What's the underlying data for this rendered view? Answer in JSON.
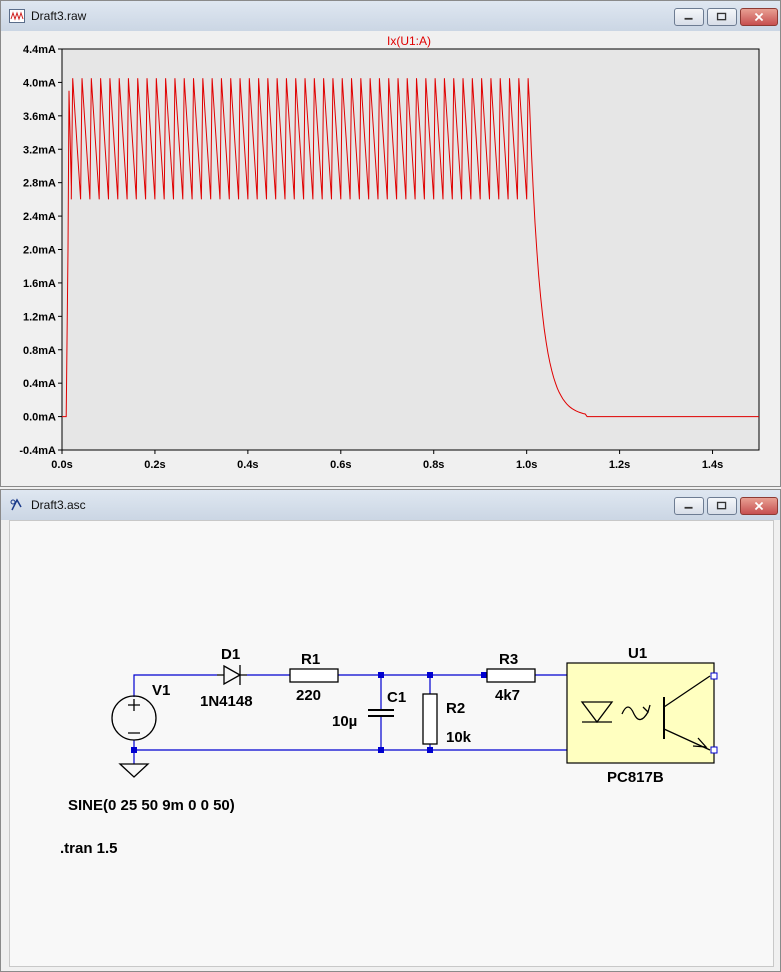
{
  "top_window": {
    "title": "Draft3.raw",
    "icon": "waveform-viewer-icon"
  },
  "bottom_window": {
    "title": "Draft3.asc",
    "icon": "schematic-editor-icon"
  },
  "chart_data": {
    "type": "line",
    "title": "",
    "trace_label": "Ix(U1:A)",
    "trace_color": "#e00000",
    "xlabel": "",
    "ylabel": "",
    "xlim": [
      0.0,
      1.5
    ],
    "ylim": [
      -0.4,
      4.4
    ],
    "x_ticks": [
      "0.0s",
      "0.2s",
      "0.4s",
      "0.6s",
      "0.8s",
      "1.0s",
      "1.2s",
      "1.4s"
    ],
    "y_ticks": [
      "-0.4mA",
      "0.0mA",
      "0.4mA",
      "0.8mA",
      "1.2mA",
      "1.6mA",
      "2.0mA",
      "2.4mA",
      "2.8mA",
      "3.2mA",
      "3.6mA",
      "4.0mA",
      "4.4mA"
    ],
    "signal": {
      "frequency_hz": 50,
      "rise_start_s": 0.009,
      "first_peak_ma": 3.9,
      "ripple_max_ma": 4.05,
      "ripple_min_ma": 2.6,
      "ripple_end_s": 1.0,
      "decay_end_s": 1.13,
      "final_ma": 0.0
    },
    "grid": false,
    "background": "#e6e6e6"
  },
  "schematic": {
    "components": {
      "V1": {
        "ref": "V1",
        "value": "SINE(0 25 50 9m 0 0 50)"
      },
      "D1": {
        "ref": "D1",
        "value": "1N4148"
      },
      "R1": {
        "ref": "R1",
        "value": "220"
      },
      "C1": {
        "ref": "C1",
        "value": "10µ"
      },
      "R2": {
        "ref": "R2",
        "value": "10k"
      },
      "R3": {
        "ref": "R3",
        "value": "4k7"
      },
      "U1": {
        "ref": "U1",
        "value": "PC817B"
      }
    },
    "directive": ".tran 1.5",
    "colors": {
      "wire": "#0000d0",
      "component": "#000000",
      "optocoupler_fill": "#ffffc0"
    }
  }
}
